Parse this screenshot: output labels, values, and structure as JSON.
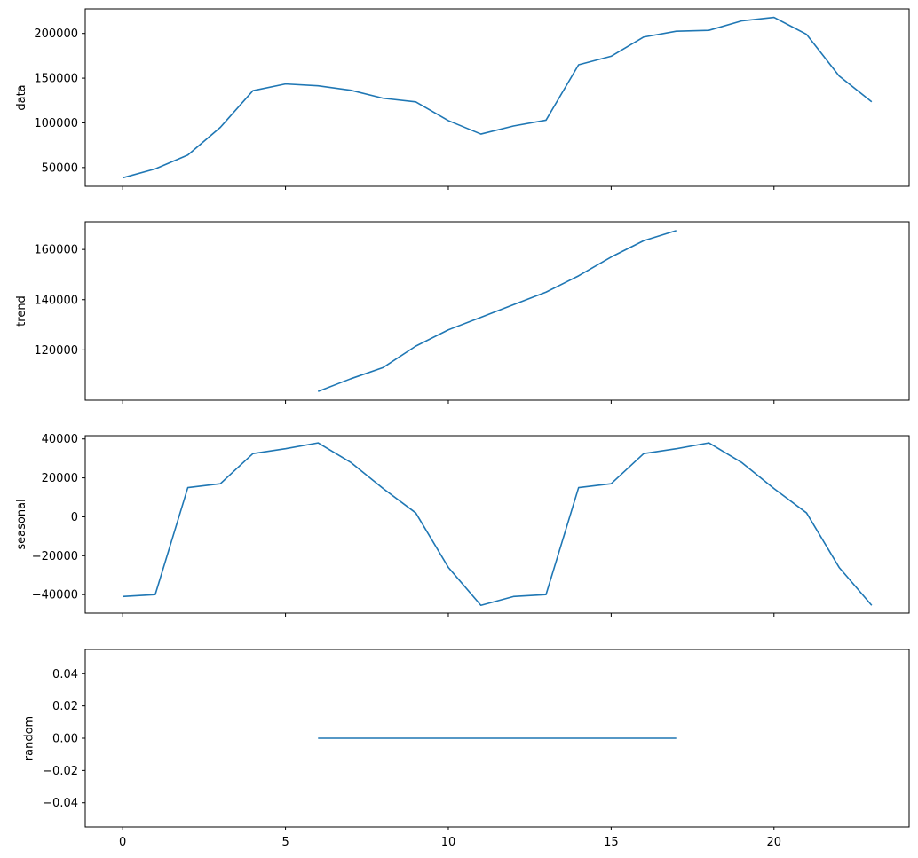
{
  "colors": {
    "line": "#1f77b4",
    "axes": "#000000",
    "background": "#ffffff"
  },
  "chart_data": [
    {
      "type": "line",
      "ylabel": "data",
      "xlim": [
        -1.15,
        24.15
      ],
      "ylim": [
        29000,
        227500
      ],
      "yticks": [
        50000,
        100000,
        150000,
        200000
      ],
      "ytick_labels": [
        "50000",
        "100000",
        "150000",
        "200000"
      ],
      "xticks": [
        0,
        5,
        10,
        15,
        20
      ],
      "xtick_labels": [],
      "grid": false,
      "x": [
        0,
        1,
        2,
        3,
        4,
        5,
        6,
        7,
        8,
        9,
        10,
        11,
        12,
        13,
        14,
        15,
        16,
        17,
        18,
        19,
        20,
        21,
        22,
        23
      ],
      "y": [
        38500,
        48500,
        64000,
        95000,
        136000,
        143500,
        141500,
        136500,
        127500,
        123500,
        102500,
        87500,
        96500,
        103000,
        165000,
        174500,
        196000,
        202500,
        203500,
        214000,
        218000,
        199000,
        152500,
        123500
      ]
    },
    {
      "type": "line",
      "ylabel": "trend",
      "xlim": [
        -1.15,
        24.15
      ],
      "ylim": [
        100000,
        171000
      ],
      "yticks": [
        120000,
        140000,
        160000
      ],
      "ytick_labels": [
        "120000",
        "140000",
        "160000"
      ],
      "xticks": [
        0,
        5,
        10,
        15,
        20
      ],
      "xtick_labels": [],
      "grid": false,
      "x": [
        6,
        7,
        8,
        9,
        10,
        11,
        12,
        13,
        14,
        15,
        16,
        17
      ],
      "y": [
        103500,
        108500,
        113000,
        121500,
        128000,
        133000,
        138000,
        143000,
        149500,
        157000,
        163500,
        167500
      ]
    },
    {
      "type": "line",
      "ylabel": "seasonal",
      "xlim": [
        -1.15,
        24.15
      ],
      "ylim": [
        -49500,
        41700
      ],
      "yticks": [
        -40000,
        -20000,
        0,
        20000,
        40000
      ],
      "ytick_labels": [
        "−40000",
        "−20000",
        "0",
        "20000",
        "40000"
      ],
      "xticks": [
        0,
        5,
        10,
        15,
        20
      ],
      "xtick_labels": [],
      "grid": false,
      "x": [
        0,
        1,
        2,
        3,
        4,
        5,
        6,
        7,
        8,
        9,
        10,
        11,
        12,
        13,
        14,
        15,
        16,
        17,
        18,
        19,
        20,
        21,
        22,
        23
      ],
      "y": [
        -41000,
        -40000,
        15000,
        17000,
        32500,
        35000,
        38000,
        28000,
        14500,
        2000,
        -26000,
        -45500,
        -41000,
        -40000,
        15000,
        17000,
        32500,
        35000,
        38000,
        28000,
        14500,
        2000,
        -26000,
        -45500
      ]
    },
    {
      "type": "line",
      "ylabel": "random",
      "xlim": [
        -1.15,
        24.15
      ],
      "ylim": [
        -0.055,
        0.055
      ],
      "yticks": [
        -0.04,
        -0.02,
        0.0,
        0.02,
        0.04
      ],
      "ytick_labels": [
        "−0.04",
        "−0.02",
        "0.00",
        "0.02",
        "0.04"
      ],
      "xticks": [
        0,
        5,
        10,
        15,
        20
      ],
      "xtick_labels": [
        "0",
        "5",
        "10",
        "15",
        "20"
      ],
      "grid": false,
      "x": [
        6,
        7,
        8,
        9,
        10,
        11,
        12,
        13,
        14,
        15,
        16,
        17
      ],
      "y": [
        0,
        0,
        0,
        0,
        0,
        0,
        0,
        0,
        0,
        0,
        0,
        0
      ]
    }
  ]
}
